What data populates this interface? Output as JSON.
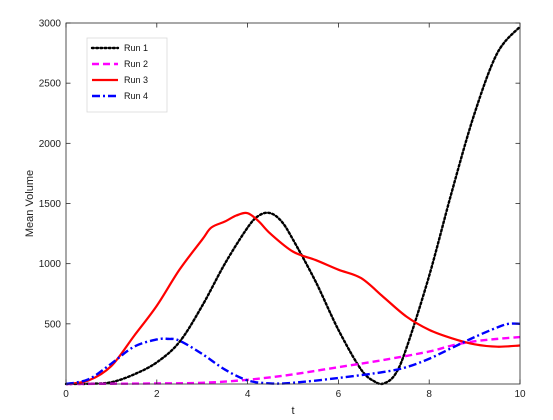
{
  "chart_data": {
    "type": "line",
    "title": "",
    "xlabel": "t",
    "ylabel": "Mean Volume",
    "xlim": [
      0,
      10
    ],
    "ylim": [
      0,
      3000
    ],
    "x_ticks": [
      0,
      2,
      4,
      6,
      8,
      10
    ],
    "y_ticks": [
      500,
      1000,
      1500,
      2000,
      2500,
      3000
    ],
    "grid": false,
    "legend_position": "top-left",
    "series": [
      {
        "name": "Run 1",
        "color": "#000000",
        "style": "dotted",
        "x": [
          0,
          0.5,
          1.0,
          1.5,
          2.0,
          2.5,
          3.0,
          3.5,
          4.0,
          4.25,
          4.5,
          4.75,
          5.0,
          5.5,
          6.0,
          6.5,
          6.8,
          7.0,
          7.25,
          7.5,
          8.0,
          8.5,
          9.0,
          9.5,
          10.0
        ],
        "y": [
          0,
          2,
          15,
          80,
          180,
          350,
          650,
          1000,
          1300,
          1400,
          1420,
          1350,
          1200,
          850,
          450,
          120,
          20,
          5,
          80,
          300,
          900,
          1600,
          2250,
          2750,
          2970
        ]
      },
      {
        "name": "Run 2",
        "color": "#ff00ff",
        "style": "dashed",
        "x": [
          0,
          1.0,
          2.0,
          3.0,
          4.0,
          5.0,
          6.0,
          7.0,
          8.0,
          8.5,
          9.0,
          9.5,
          10.0
        ],
        "y": [
          0,
          2,
          5,
          10,
          35,
          80,
          140,
          200,
          270,
          320,
          355,
          375,
          390
        ]
      },
      {
        "name": "Run 3",
        "color": "#ff0000",
        "style": "solid",
        "x": [
          0,
          0.5,
          1.0,
          1.5,
          2.0,
          2.5,
          3.0,
          3.2,
          3.5,
          3.75,
          4.0,
          4.25,
          4.5,
          5.0,
          5.5,
          6.0,
          6.5,
          7.0,
          7.5,
          8.0,
          8.5,
          9.0,
          9.5,
          10.0
        ],
        "y": [
          0,
          30,
          150,
          400,
          650,
          950,
          1200,
          1300,
          1350,
          1400,
          1420,
          1350,
          1250,
          1100,
          1030,
          950,
          880,
          720,
          560,
          450,
          380,
          330,
          310,
          320
        ]
      },
      {
        "name": "Run 4",
        "color": "#0000ff",
        "style": "dashdot",
        "x": [
          0,
          0.5,
          1.0,
          1.5,
          2.0,
          2.25,
          2.5,
          3.0,
          3.5,
          4.0,
          4.5,
          5.0,
          6.0,
          7.0,
          7.5,
          8.0,
          8.5,
          9.0,
          9.5,
          9.75,
          10.0
        ],
        "y": [
          0,
          40,
          170,
          310,
          370,
          375,
          360,
          250,
          120,
          30,
          5,
          10,
          50,
          100,
          140,
          210,
          300,
          390,
          470,
          500,
          500
        ]
      }
    ]
  }
}
